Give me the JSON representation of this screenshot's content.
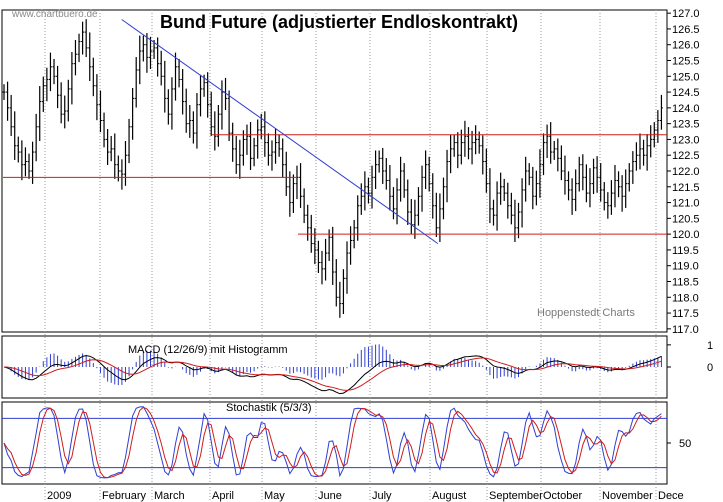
{
  "chart_data": [
    {
      "type": "candlestick",
      "panel": "price",
      "title": "Bund Future (adjustierter Endloskontrakt)",
      "watermark": "www.chartbuero.de",
      "source": "Hoppenstedt Charts",
      "y_ticks": [
        "117.0",
        "117.5",
        "118.0",
        "118.5",
        "119.0",
        "119.5",
        "120.0",
        "120.5",
        "121.0",
        "121.5",
        "122.0",
        "122.5",
        "123.0",
        "123.5",
        "124.0",
        "124.5",
        "125.0",
        "125.5",
        "126.0",
        "126.5",
        "127.0"
      ],
      "ylim": [
        116.9,
        127.1
      ],
      "x_labels": [
        "2009",
        "February",
        "March",
        "April",
        "May",
        "June",
        "July",
        "August",
        "September",
        "October",
        "November",
        "Dece"
      ],
      "series_closes": [
        124.5,
        124.0,
        123.4,
        122.8,
        122.6,
        122.2,
        122.3,
        122.0,
        122.6,
        123.4,
        124.2,
        124.7,
        124.9,
        125.3,
        125.0,
        124.4,
        123.8,
        123.9,
        124.6,
        125.4,
        125.7,
        126.1,
        126.4,
        125.9,
        125.3,
        124.7,
        124.1,
        123.6,
        123.0,
        122.6,
        122.7,
        122.2,
        122.0,
        121.9,
        122.5,
        123.4,
        124.3,
        125.2,
        125.8,
        126.0,
        125.6,
        125.8,
        125.9,
        125.4,
        125.0,
        124.3,
        123.8,
        124.6,
        125.3,
        124.9,
        124.2,
        123.5,
        123.6,
        123.2,
        124.1,
        124.6,
        124.8,
        124.1,
        123.4,
        123.1,
        123.8,
        124.5,
        124.3,
        123.2,
        122.7,
        122.2,
        122.5,
        123.0,
        123.1,
        122.4,
        122.8,
        123.3,
        123.4,
        122.9,
        122.5,
        122.6,
        122.9,
        122.7,
        122.2,
        121.5,
        121.0,
        121.6,
        121.8,
        121.2,
        120.6,
        120.2,
        119.7,
        119.5,
        119.1,
        118.9,
        119.4,
        119.9,
        118.8,
        118.0,
        117.8,
        118.6,
        119.4,
        119.8,
        120.2,
        120.9,
        121.2,
        121.5,
        121.3,
        121.8,
        122.2,
        122.4,
        122.0,
        121.7,
        121.2,
        120.8,
        121.4,
        122.0,
        121.4,
        120.7,
        120.3,
        120.6,
        121.2,
        121.8,
        122.2,
        121.6,
        120.9,
        120.2,
        120.8,
        121.5,
        122.3,
        122.7,
        122.9,
        122.5,
        122.9,
        123.1,
        122.7,
        122.9,
        123.0,
        122.8,
        122.3,
        121.6,
        120.8,
        120.6,
        121.3,
        121.5,
        121.3,
        120.9,
        120.6,
        120.2,
        120.7,
        121.4,
        122.0,
        121.8,
        121.2,
        121.6,
        122.2,
        122.9,
        123.1,
        122.6,
        122.7,
        122.4,
        122.0,
        121.7,
        121.4,
        121.1,
        121.6,
        122.2,
        121.8,
        121.3,
        121.6,
        122.1,
        121.8,
        121.4,
        121.0,
        120.9,
        121.3,
        121.7,
        121.5,
        121.2,
        121.6,
        122.0,
        122.3,
        122.5,
        122.7,
        122.5,
        122.8,
        123.0,
        123.3,
        123.6,
        124.0
      ],
      "support_lines": [
        {
          "y": 121.8,
          "label": "red-support-early"
        },
        {
          "y": 123.15,
          "label": "red-resistance"
        },
        {
          "y": 120.0,
          "label": "red-support-late"
        }
      ],
      "trendline": {
        "from": [
          0.2,
          126.8
        ],
        "to": [
          0.57,
          119.7
        ],
        "color": "#2f3fd0"
      }
    },
    {
      "type": "line",
      "panel": "macd",
      "title": "MACD (12/26/9) mit Histogramm",
      "y_ticks": [
        "1",
        "0"
      ],
      "ylim": [
        -1.4,
        1.4
      ]
    },
    {
      "type": "line",
      "panel": "stochastic",
      "title": "Stochastik (5/3/3)",
      "y_ticks": [
        "50"
      ],
      "ylim": [
        0,
        100
      ],
      "bands": [
        80,
        20
      ]
    }
  ],
  "colors": {
    "candle": "#000000",
    "support": "#d01c1c",
    "trend": "#2f3fd0",
    "macd_line": "#000000",
    "macd_signal": "#d01c1c",
    "histogram": "#2f3fd0",
    "stoch_k": "#2f3fd0",
    "stoch_d": "#d01c1c",
    "grid": "#999999"
  }
}
